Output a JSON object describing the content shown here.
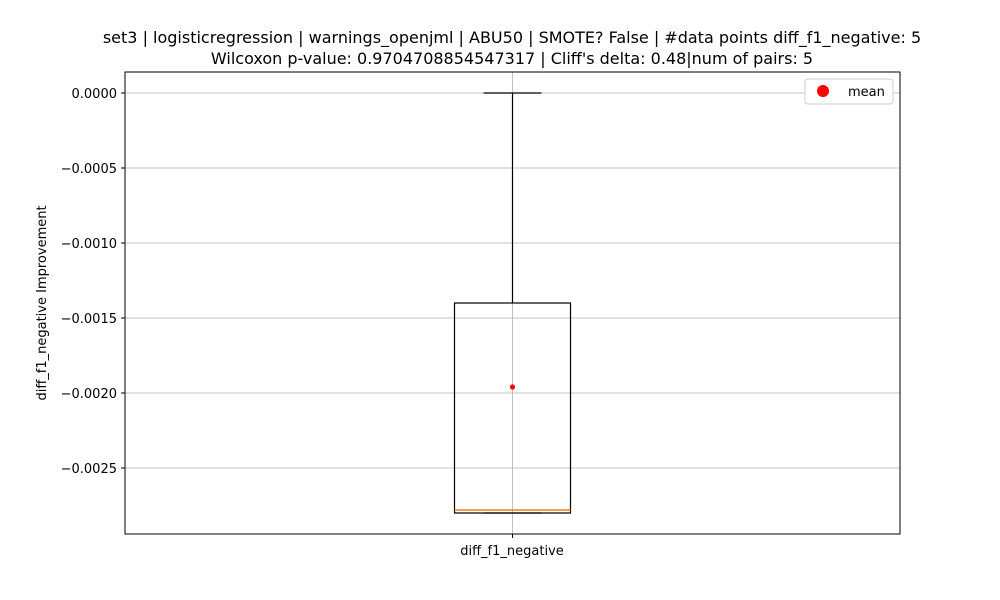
{
  "chart_data": {
    "type": "box",
    "title_line1": "set3 | logisticregression | warnings_openjml | ABU50 | SMOTE? False | #data points diff_f1_negative: 5",
    "title_line2": "Wilcoxon p-value: 0.9704708854547317 | Cliff's delta: 0.48|num of pairs: 5",
    "xlabel": "",
    "ylabel": "diff_f1_negative Improvement",
    "categories": [
      "diff_f1_negative"
    ],
    "box": {
      "whisker_high": 0.0,
      "q3": -0.0014,
      "median": -0.00278,
      "q1": -0.0028,
      "whisker_low": -0.0028,
      "mean": -0.00196
    },
    "ylim": [
      -0.00294,
      0.00014
    ],
    "yticks": [
      0.0,
      -0.0005,
      -0.001,
      -0.0015,
      -0.002,
      -0.0025
    ],
    "ytick_labels": [
      "0.0000",
      "−0.0005",
      "−0.0010",
      "−0.0015",
      "−0.0020",
      "−0.0025"
    ],
    "grid": true,
    "legend": {
      "position": "top-right",
      "entries": [
        {
          "label": "mean",
          "color": "#ff0000",
          "marker": "circle"
        }
      ]
    },
    "colors": {
      "median": "#ff7f0e",
      "mean": "#ff0000",
      "box": "#000000",
      "grid": "#b0b0b0"
    }
  }
}
